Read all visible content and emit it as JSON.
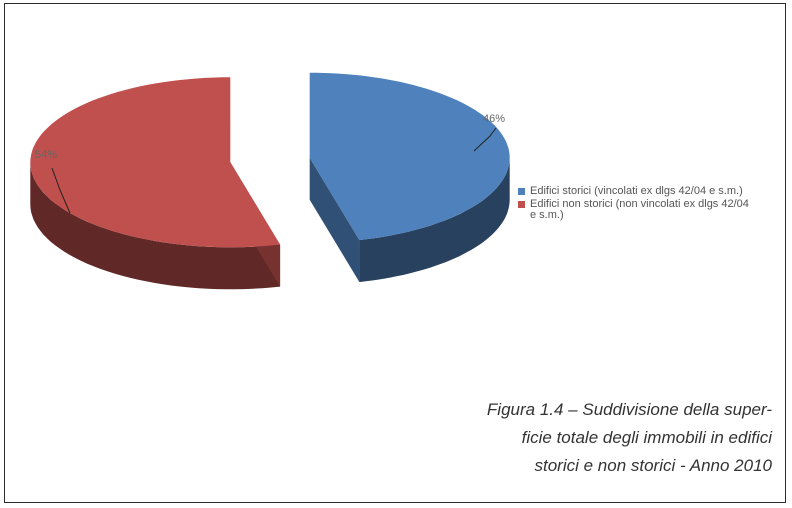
{
  "chart_data": {
    "type": "pie",
    "title": "",
    "categories": [
      "Edifici storici (vincolati ex dlgs 42/04 e s.m.)",
      "Edifici non storici (non vincolati ex dlgs 42/04 e s.m.)"
    ],
    "values": [
      46,
      54
    ],
    "value_labels": [
      "46%",
      "54%"
    ],
    "colors": [
      "#4f81bd",
      "#c0504d"
    ],
    "legend_position": "right"
  },
  "caption": "Figura 1.4 – Suddivisione della super-\nficie totale degli immobili in edifici\nstorici e non storici - Anno 2010"
}
